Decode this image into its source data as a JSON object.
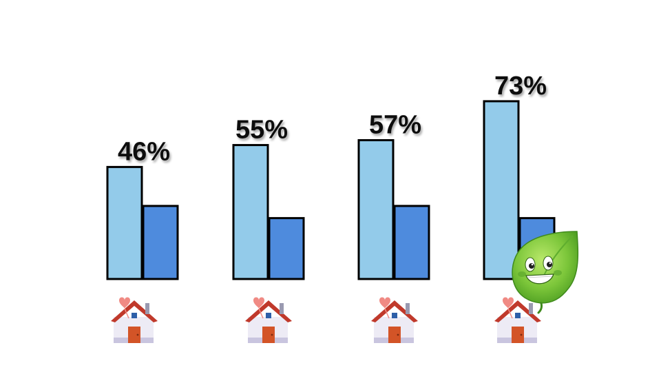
{
  "chart_data": {
    "type": "bar",
    "categories": [
      "",
      "",
      "",
      ""
    ],
    "series": [
      {
        "values": [
          46,
          55,
          57,
          73
        ],
        "color": "#93CBEA"
      },
      {
        "values": [
          30,
          25,
          30,
          25
        ],
        "color": "#4E8BDD"
      }
    ],
    "labels": [
      "46%",
      "55%",
      "57%",
      "73%"
    ],
    "grid": false,
    "legend": "none",
    "category_icon": "house-with-heart-icon",
    "mascot_icon": "smiling-leaf-mascot"
  }
}
